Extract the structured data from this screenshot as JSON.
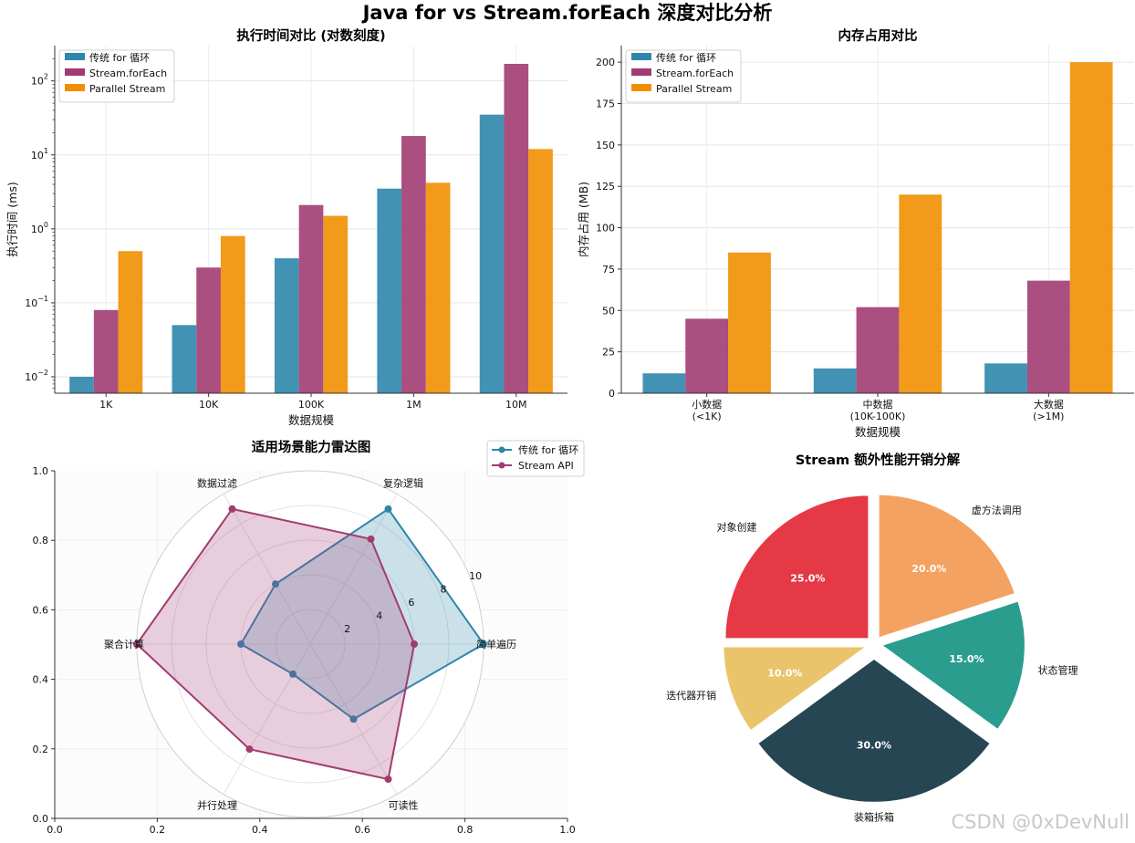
{
  "title": "Java for vs Stream.forEach 深度对比分析",
  "watermark": "CSDN @0xDevNull",
  "colors": {
    "for": "#2e86ab",
    "stream": "#a23b72",
    "parallel": "#f18f01",
    "pie": [
      "#e63946",
      "#e9c46a",
      "#264653",
      "#2a9d8f",
      "#f4a261"
    ]
  },
  "chart_data": [
    {
      "type": "bar",
      "title": "执行时间对比 (对数刻度)",
      "xlabel": "数据规模",
      "ylabel": "执行时间 (ms)",
      "yscale": "log",
      "ylim": [
        0.006,
        300
      ],
      "yticks": [
        0.01,
        0.1,
        1,
        10,
        100
      ],
      "ytick_labels": [
        [
          "10",
          "−2"
        ],
        [
          "10",
          "−1"
        ],
        [
          "10",
          "0"
        ],
        [
          "10",
          "1"
        ],
        [
          "10",
          "2"
        ]
      ],
      "categories": [
        "1K",
        "10K",
        "100K",
        "1M",
        "10M"
      ],
      "series": [
        {
          "name": "传统 for 循环",
          "values": [
            0.01,
            0.05,
            0.4,
            3.5,
            35
          ]
        },
        {
          "name": "Stream.forEach",
          "values": [
            0.08,
            0.3,
            2.1,
            18,
            170
          ]
        },
        {
          "name": "Parallel Stream",
          "values": [
            0.5,
            0.8,
            1.5,
            4.2,
            12
          ]
        }
      ],
      "legend": "top-left",
      "grid": true
    },
    {
      "type": "bar",
      "title": "内存占用对比",
      "xlabel": "数据规模",
      "ylabel": "内存占用 (MB)",
      "ylim": [
        0,
        210
      ],
      "yticks": [
        0,
        25,
        50,
        75,
        100,
        125,
        150,
        175,
        200
      ],
      "categories": [
        "小数据\n(<1K)",
        "中数据\n(10K-100K)",
        "大数据\n(>1M)"
      ],
      "series": [
        {
          "name": "传统 for 循环",
          "values": [
            12,
            15,
            18
          ]
        },
        {
          "name": "Stream.forEach",
          "values": [
            45,
            52,
            68
          ]
        },
        {
          "name": "Parallel Stream",
          "values": [
            85,
            120,
            200
          ]
        }
      ],
      "legend": "top-left",
      "grid": true
    },
    {
      "type": "radar",
      "title": "适用场景能力雷达图",
      "categories": [
        "简单遍历",
        "复杂逻辑",
        "数据过滤",
        "聚合计算",
        "并行处理",
        "可读性"
      ],
      "rmax": 10,
      "rticks": [
        2,
        4,
        6,
        8,
        10
      ],
      "frame_ticks": [
        "0.0",
        "0.2",
        "0.4",
        "0.6",
        "0.8",
        "1.0"
      ],
      "series": [
        {
          "name": "传统 for 循环",
          "values": [
            10,
            9,
            4,
            4,
            2,
            5
          ]
        },
        {
          "name": "Stream API",
          "values": [
            6,
            7,
            9,
            10,
            7,
            9
          ]
        }
      ],
      "legend": "top-right"
    },
    {
      "type": "pie",
      "title": "Stream 额外性能开销分解",
      "labels": [
        "对象创建",
        "迭代器开销",
        "装箱拆箱",
        "状态管理",
        "虚方法调用"
      ],
      "values": [
        25.0,
        10.0,
        30.0,
        15.0,
        20.0
      ],
      "value_labels": [
        "25.0%",
        "10.0%",
        "30.0%",
        "15.0%",
        "20.0%"
      ],
      "explode": [
        0.05,
        0.05,
        0.1,
        0.05,
        0.05
      ]
    }
  ]
}
